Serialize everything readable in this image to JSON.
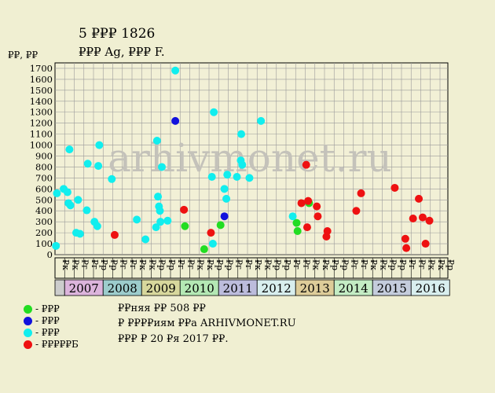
{
  "title_line1": "5 ₽₽₽ 1826",
  "title_line2": "₽₽₽ Ag, ₽₽₽ F.",
  "ylabel": "₽₽, ₽₽",
  "watermark": "arhivmonet.ru",
  "notes": [
    "₽₽няя ₽₽ 508 ₽₽",
    "₽ ₽₽₽₽иям ₽₽а ARHIVMONET.RU",
    "₽₽₽ ₽ 20 ₽я 2017 ₽₽."
  ],
  "legend": [
    {
      "label": "- ₽₽₽",
      "color": "#22dd22"
    },
    {
      "label": "- ₽₽₽",
      "color": "#1111dd"
    },
    {
      "label": "- ₽₽₽",
      "color": "#11eeee"
    },
    {
      "label": "- ₽₽₽₽₽Б",
      "color": "#ee1111"
    }
  ],
  "chart_data": {
    "type": "scatter",
    "ylim": [
      0,
      1750
    ],
    "yticks": [
      0,
      100,
      200,
      300,
      400,
      500,
      600,
      700,
      800,
      900,
      1000,
      1100,
      1200,
      1300,
      1400,
      1500,
      1600,
      1700
    ],
    "grid": true,
    "months": [
      "₽к",
      "₽к",
      "₽г",
      "₽г",
      "₽р",
      "₽р",
      "₽г",
      "₽г",
      "₽к",
      "₽к",
      "₽р",
      "₽р",
      "₽г",
      "₽г",
      "₽к",
      "₽к",
      "₽р",
      "₽р",
      "₽г",
      "₽г",
      "₽к",
      "₽к",
      "₽р",
      "₽р",
      "₽г",
      "₽г",
      "₽к",
      "₽к",
      "₽р",
      "₽р",
      "₽г",
      "₽г",
      "₽к",
      "₽к",
      "₽р",
      "₽р",
      "₽г",
      "₽г",
      "₽к",
      "₽к",
      "₽р",
      "₽р",
      "₽г",
      "₽г",
      "₽к",
      "₽к",
      "₽р",
      "₽р",
      "₽г",
      "₽г",
      "₽к",
      "₽к",
      "₽р",
      "₽р",
      "₽г",
      "₽г",
      "₽к"
    ],
    "years": [
      {
        "label": "",
        "start": 0,
        "end": 1,
        "color": "#cccccc"
      },
      {
        "label": "2007",
        "start": 1,
        "end": 5,
        "color": "#dcb4dc"
      },
      {
        "label": "2008",
        "start": 5,
        "end": 9,
        "color": "#9ccccc"
      },
      {
        "label": "2009",
        "start": 9,
        "end": 13,
        "color": "#d7d79c"
      },
      {
        "label": "2010",
        "start": 13,
        "end": 17,
        "color": "#b4e8b4"
      },
      {
        "label": "2011",
        "start": 17,
        "end": 21,
        "color": "#bcbcdc"
      },
      {
        "label": "2012",
        "start": 21,
        "end": 25,
        "color": "#d8eeee"
      },
      {
        "label": "2013",
        "start": 25,
        "end": 29,
        "color": "#ddcc99"
      },
      {
        "label": "2014",
        "start": 29,
        "end": 33,
        "color": "#c4ecc4"
      },
      {
        "label": "2015",
        "start": 33,
        "end": 37,
        "color": "#c4ccdc"
      },
      {
        "label": "2016",
        "start": 37,
        "end": 41,
        "color": "#d8eeee"
      }
    ],
    "series": [
      {
        "color": "#22dd22",
        "points": [
          [
            13.5,
            260
          ],
          [
            15.5,
            50
          ],
          [
            17.2,
            270
          ],
          [
            25.1,
            290
          ],
          [
            25.2,
            215
          ],
          [
            26.4,
            470
          ]
        ]
      },
      {
        "color": "#1111dd",
        "points": [
          [
            12.5,
            1220
          ],
          [
            17.6,
            350
          ]
        ]
      },
      {
        "color": "#11eeee",
        "points": [
          [
            0.1,
            80
          ],
          [
            0.2,
            560
          ],
          [
            0.9,
            600
          ],
          [
            1.3,
            570
          ],
          [
            1.4,
            470
          ],
          [
            1.6,
            450
          ],
          [
            1.5,
            960
          ],
          [
            2.2,
            200
          ],
          [
            2.4,
            500
          ],
          [
            2.6,
            190
          ],
          [
            3.3,
            405
          ],
          [
            3.4,
            830
          ],
          [
            4.1,
            300
          ],
          [
            4.4,
            260
          ],
          [
            4.5,
            810
          ],
          [
            4.6,
            1000
          ],
          [
            5.9,
            690
          ],
          [
            8.5,
            320
          ],
          [
            9.4,
            140
          ],
          [
            10.5,
            250
          ],
          [
            10.6,
            1040
          ],
          [
            10.7,
            530
          ],
          [
            10.8,
            440
          ],
          [
            10.9,
            400
          ],
          [
            10.95,
            300
          ],
          [
            11.1,
            800
          ],
          [
            11.7,
            310
          ],
          [
            12.5,
            1680
          ],
          [
            16.3,
            710
          ],
          [
            16.4,
            100
          ],
          [
            16.5,
            1300
          ],
          [
            17.6,
            600
          ],
          [
            17.8,
            510
          ],
          [
            17.9,
            730
          ],
          [
            18.9,
            710
          ],
          [
            19.3,
            860
          ],
          [
            19.35,
            1100
          ],
          [
            19.45,
            820
          ],
          [
            20.2,
            700
          ],
          [
            21.4,
            1220
          ],
          [
            24.7,
            350
          ]
        ]
      },
      {
        "color": "#ee1111",
        "points": [
          [
            6.2,
            180
          ],
          [
            13.4,
            410
          ],
          [
            16.2,
            200
          ],
          [
            25.6,
            470
          ],
          [
            26.1,
            820
          ],
          [
            26.2,
            250
          ],
          [
            26.3,
            490
          ],
          [
            27.2,
            440
          ],
          [
            27.3,
            350
          ],
          [
            28.2,
            165
          ],
          [
            28.3,
            215
          ],
          [
            31.3,
            400
          ],
          [
            31.8,
            560
          ],
          [
            35.3,
            610
          ],
          [
            36.4,
            145
          ],
          [
            36.5,
            60
          ],
          [
            37.2,
            330
          ],
          [
            37.8,
            510
          ],
          [
            38.2,
            340
          ],
          [
            38.5,
            100
          ],
          [
            38.9,
            310
          ]
        ]
      }
    ]
  }
}
